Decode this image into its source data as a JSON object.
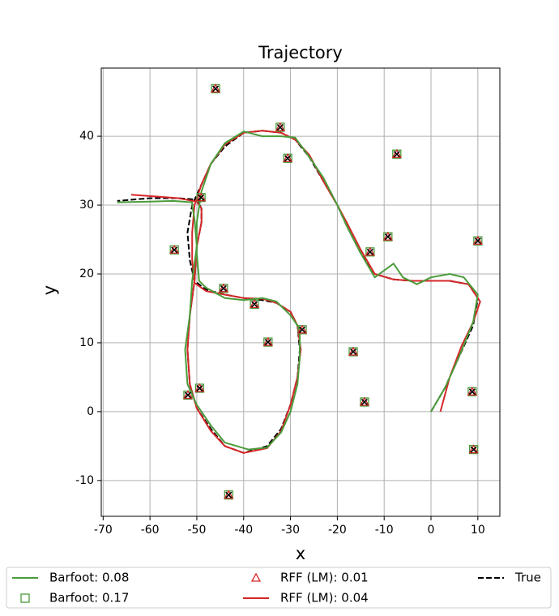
{
  "chart_data": {
    "type": "line",
    "title": "Trajectory",
    "x_label": "x",
    "y_label": "y",
    "xlim": [
      -70.4,
      14.7
    ],
    "ylim": [
      -15.2,
      49.9
    ],
    "xticks": [
      -70,
      -60,
      -50,
      -40,
      -30,
      -20,
      -10,
      0,
      10
    ],
    "yticks": [
      -10,
      0,
      10,
      20,
      30,
      40
    ],
    "grid": true,
    "legend": "bottom",
    "series": [
      {
        "name": "Barfoot: 0.08",
        "color": "#4a9c3a",
        "linestyle": "solid",
        "x": [
          0,
          3,
          6,
          9,
          10,
          7,
          4,
          0,
          -3,
          -6,
          -8,
          -12,
          -15,
          -18,
          -20,
          -23,
          -26,
          -29,
          -32,
          -36,
          -40,
          -44,
          -47,
          -49,
          -50,
          -50,
          -49.5,
          -48,
          -44,
          -40,
          -36,
          -33,
          -30,
          -28,
          -28,
          -28.5,
          -30,
          -32,
          -35,
          -39,
          -44,
          -47,
          -50,
          -52,
          -52.5,
          -51.5,
          -51,
          -50,
          -50.5,
          -51,
          -51,
          -55,
          -60,
          -67
        ],
        "y": [
          0,
          3.5,
          8,
          13,
          17,
          19.5,
          20,
          19.5,
          18.5,
          19.5,
          21.5,
          19.5,
          23,
          27,
          30,
          34,
          37,
          39.8,
          40,
          40,
          40.7,
          39,
          36,
          32,
          27.5,
          23,
          19,
          18,
          16.5,
          16.2,
          16.5,
          16,
          14,
          12,
          8,
          4,
          0,
          -3,
          -5.2,
          -5.5,
          -4.5,
          -2,
          1,
          4,
          9,
          14,
          19,
          24,
          28,
          30,
          30.4,
          30.6,
          30.5,
          30.4
        ]
      },
      {
        "name": "Barfoot: 0.17",
        "color": "#4a9c3a",
        "marker": "square",
        "x": [
          -46,
          -32.2,
          -30.6,
          -7.3,
          -49.1,
          -54.8,
          -9.2,
          -13,
          10,
          -44.3,
          -37.7,
          -27.5,
          -34.8,
          -16.6,
          -49.4,
          -51.9,
          -14.2,
          8.8,
          9.1,
          -43.2
        ],
        "y": [
          46.9,
          41.3,
          36.8,
          37.4,
          31.1,
          23.5,
          25.4,
          23.2,
          24.8,
          17.9,
          15.6,
          11.9,
          10.1,
          8.7,
          3.4,
          2.4,
          1.4,
          2.9,
          -5.5,
          -12.1
        ]
      },
      {
        "name": "RFF (LM): 0.01",
        "color": "#d62728",
        "marker": "triangle",
        "x": [
          -46,
          -32.2,
          -30.6,
          -7.3,
          -49.1,
          -54.8,
          -9.2,
          -13,
          10,
          -44.3,
          -37.7,
          -27.5,
          -34.8,
          -16.6,
          -49.4,
          -51.9,
          -14.2,
          8.8,
          9.1,
          -43.2
        ],
        "y": [
          46.9,
          41.3,
          36.8,
          37.4,
          31.1,
          23.5,
          25.4,
          23.2,
          24.8,
          17.9,
          15.6,
          11.9,
          10.1,
          8.7,
          3.4,
          2.4,
          1.4,
          2.9,
          -5.5,
          -12.1
        ]
      },
      {
        "name": "RFF (LM): 0.04",
        "color": "#d62728",
        "linestyle": "solid",
        "x": [
          2,
          4,
          6.5,
          9,
          10.5,
          8,
          4,
          0,
          -4,
          -8,
          -12,
          -15,
          -18,
          -20,
          -23,
          -26,
          -29,
          -32,
          -36,
          -40,
          -44,
          -47,
          -49,
          -50.5,
          -51,
          -51,
          -50.5,
          -48,
          -44,
          -40,
          -36,
          -33,
          -30,
          -28.5,
          -27.8,
          -28.5,
          -30,
          -32,
          -35,
          -40,
          -44,
          -47,
          -50,
          -51.5,
          -52,
          -51.5,
          -50.5,
          -50,
          -49,
          -49,
          -50,
          -54,
          -58,
          -64
        ],
        "y": [
          0,
          5,
          9.5,
          13,
          16,
          18.5,
          19,
          19,
          19,
          19.2,
          20,
          23.5,
          27.5,
          30,
          33.5,
          37.3,
          39.5,
          40.5,
          40.8,
          40.5,
          38.8,
          36,
          33,
          30,
          26,
          22,
          18.7,
          17.5,
          17,
          16.5,
          16.4,
          15.8,
          14.5,
          12.5,
          9,
          5,
          1,
          -2.8,
          -5.3,
          -6,
          -5,
          -2.8,
          0.5,
          4,
          9,
          14,
          19,
          24,
          27.5,
          29.5,
          30.5,
          31,
          31.2,
          31.5
        ]
      },
      {
        "name": "True",
        "color": "#000000",
        "linestyle": "dashed",
        "x": [
          0,
          3,
          6,
          9,
          10,
          8,
          4,
          0,
          -4,
          -8,
          -12,
          -15,
          -18,
          -20,
          -23,
          -26,
          -29,
          -32,
          -36,
          -40,
          -44,
          -47,
          -49,
          -51,
          -52,
          -51.5,
          -50.5,
          -48,
          -44,
          -40,
          -36,
          -33,
          -30,
          -28.5,
          -28,
          -28.5,
          -30,
          -32,
          -35,
          -40,
          -44,
          -47,
          -50,
          -51.5,
          -52,
          -51.5,
          -50.5,
          -50,
          -49,
          -49,
          -50,
          -54,
          -60,
          -67
        ],
        "y": [
          0,
          3.5,
          8,
          12.5,
          16.5,
          18.5,
          19,
          19,
          19,
          19.2,
          20,
          23,
          27,
          30,
          33.5,
          37,
          39.5,
          40.5,
          40.8,
          40.5,
          38.5,
          36,
          33,
          30,
          26,
          22,
          19,
          17.7,
          17,
          16.5,
          16.2,
          15.8,
          14.5,
          12.5,
          9,
          5,
          1,
          -2.5,
          -5,
          -6,
          -5,
          -2.5,
          0.5,
          4,
          9,
          14,
          19,
          24,
          27.5,
          29.5,
          30.8,
          31,
          31,
          30.6
        ]
      },
      {
        "color": "#000000",
        "marker": "x",
        "x": [
          -46,
          -32.2,
          -30.6,
          -7.3,
          -49.1,
          -54.8,
          -9.2,
          -13,
          10,
          -44.3,
          -37.7,
          -27.5,
          -34.8,
          -16.6,
          -49.4,
          -51.9,
          -14.2,
          8.8,
          9.1,
          -43.2
        ],
        "y": [
          46.9,
          41.3,
          36.8,
          37.4,
          31.1,
          23.5,
          25.4,
          23.2,
          24.8,
          17.9,
          15.6,
          11.9,
          10.1,
          8.7,
          3.4,
          2.4,
          1.4,
          2.9,
          -5.5,
          -12.1
        ]
      }
    ]
  }
}
